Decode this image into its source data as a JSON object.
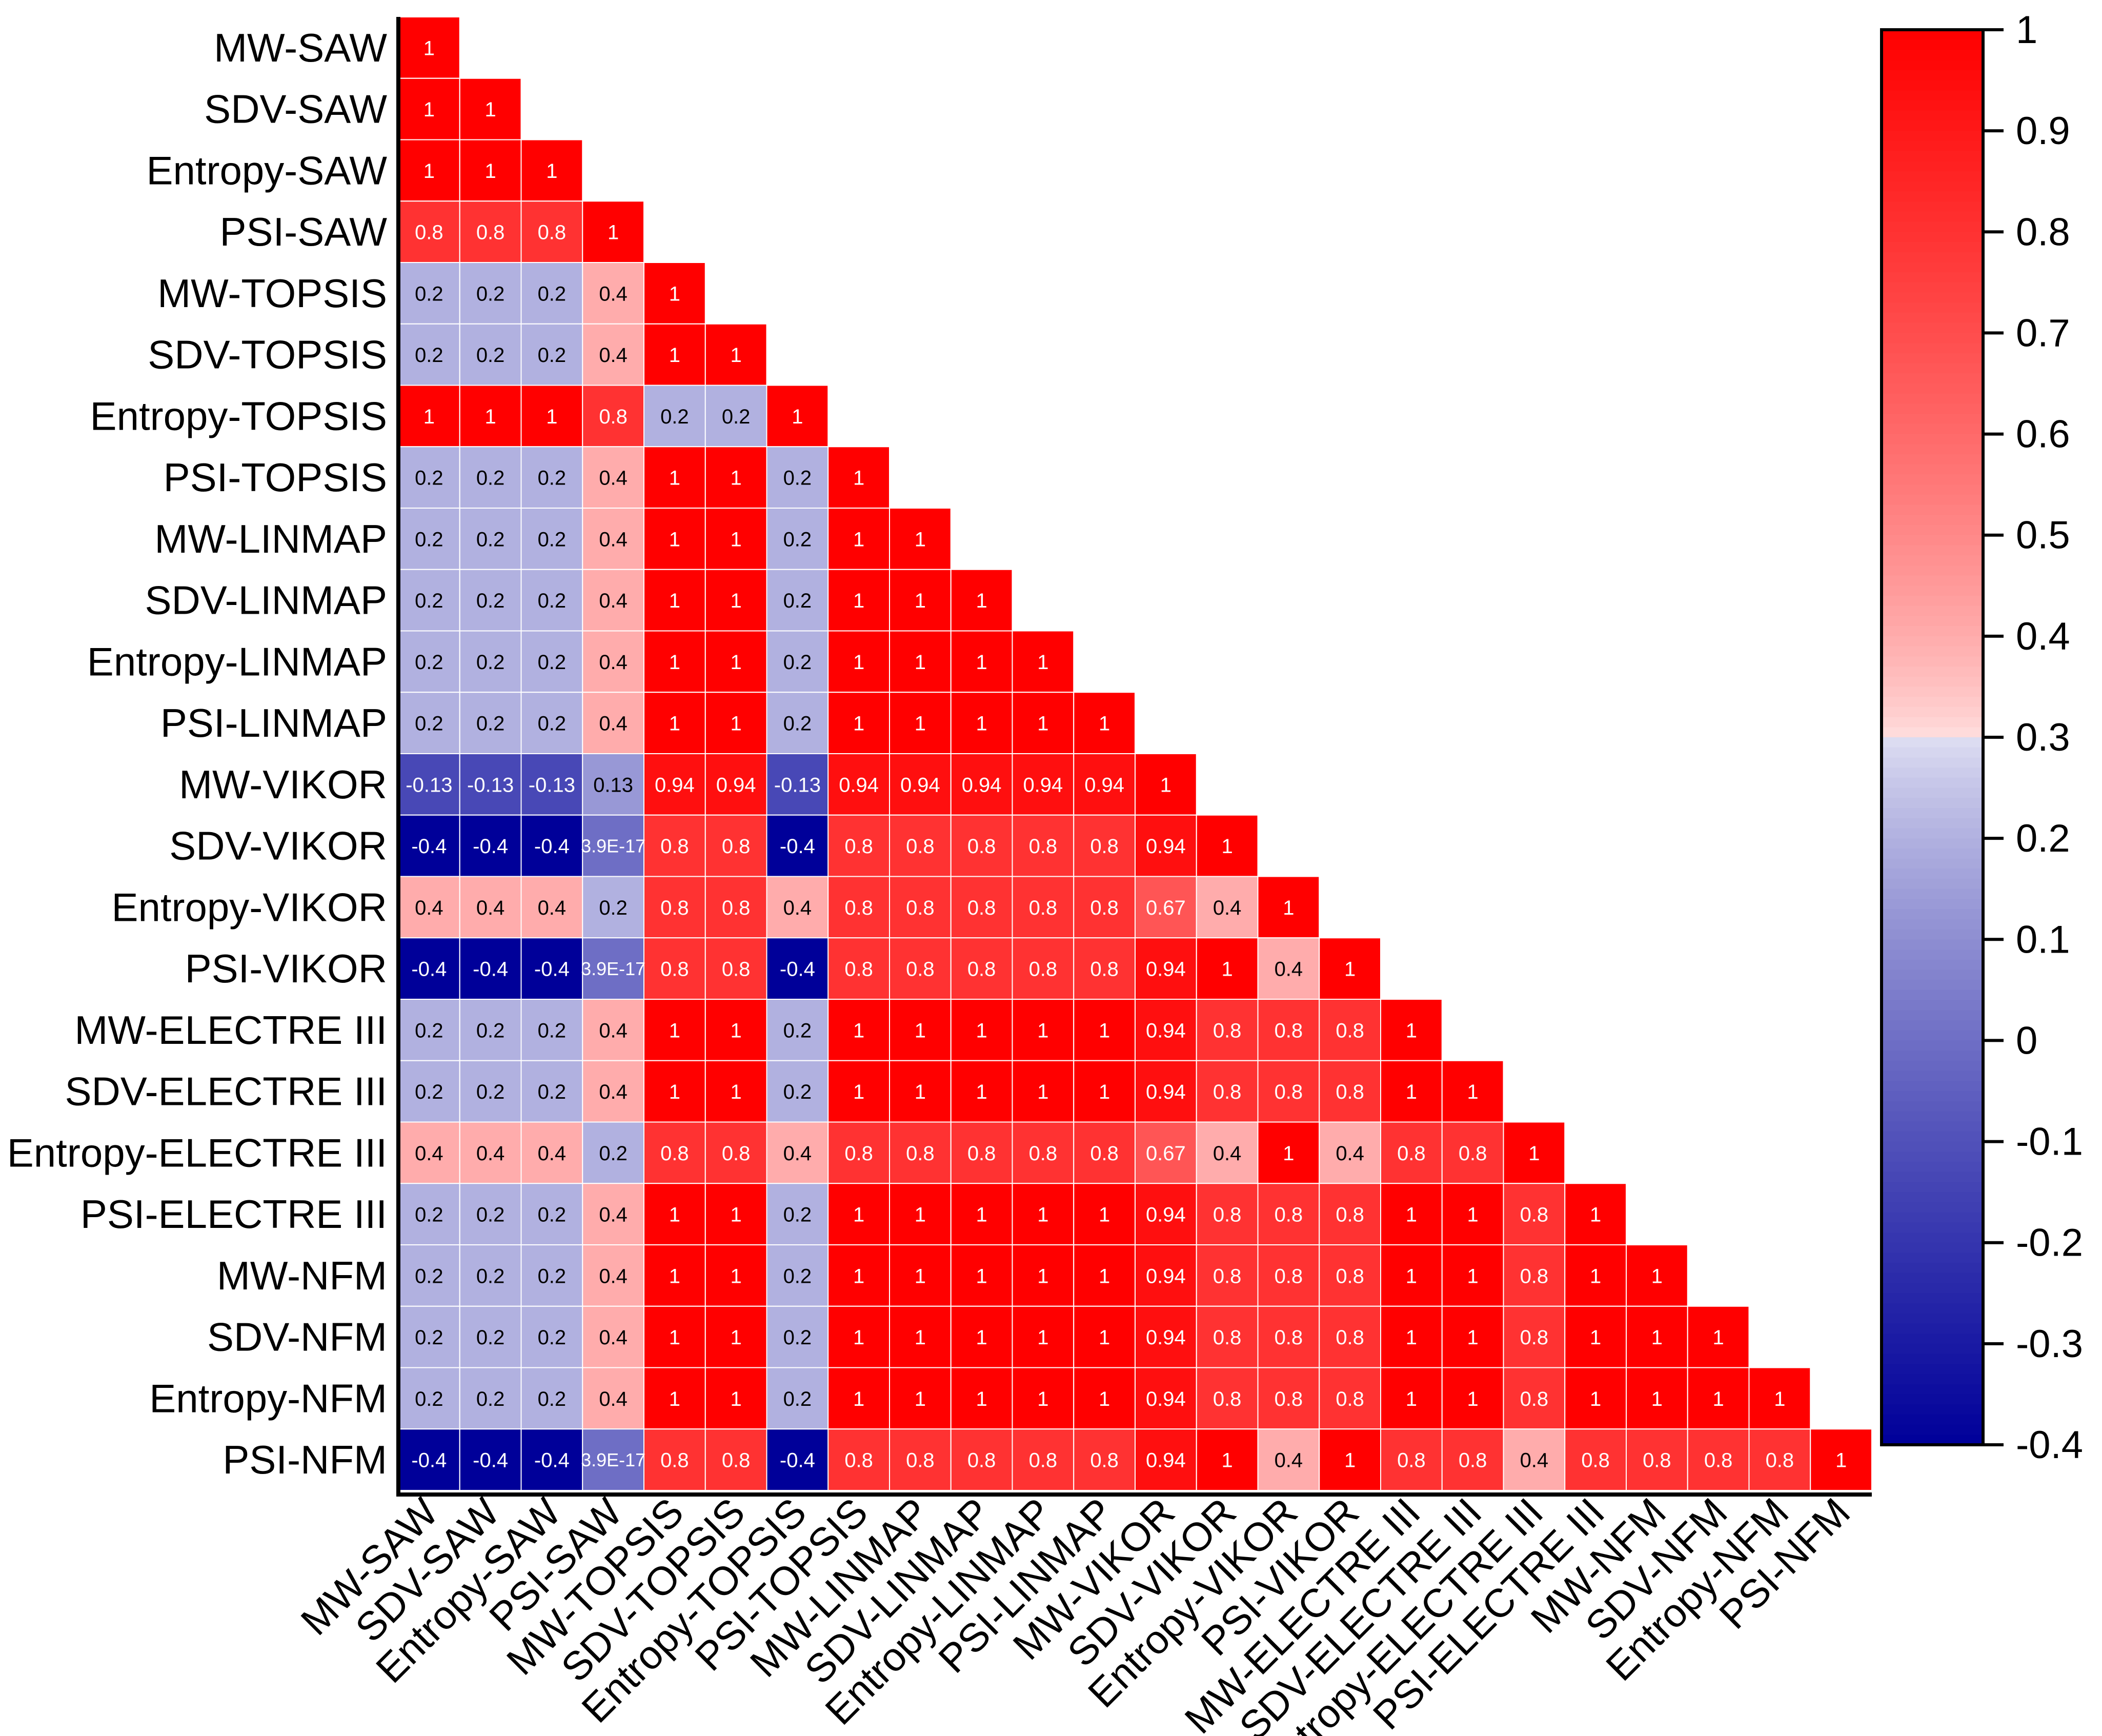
{
  "chart_data": {
    "type": "heatmap",
    "subtype": "lower-triangular correlation matrix",
    "title": "",
    "labels": [
      "MW-SAW",
      "SDV-SAW",
      "Entropy-SAW",
      "PSI-SAW",
      "MW-TOPSIS",
      "SDV-TOPSIS",
      "Entropy-TOPSIS",
      "PSI-TOPSIS",
      "MW-LINMAP",
      "SDV-LINMAP",
      "Entropy-LINMAP",
      "PSI-LINMAP",
      "MW-VIKOR",
      "SDV-VIKOR",
      "Entropy-VIKOR",
      "PSI-VIKOR",
      "MW-ELECTRE III",
      "SDV-ELECTRE III",
      "Entropy-ELECTRE III",
      "PSI-ELECTRE III",
      "MW-NFM",
      "SDV-NFM",
      "Entropy-NFM",
      "PSI-NFM"
    ],
    "rows": [
      [
        "1"
      ],
      [
        "1",
        "1"
      ],
      [
        "1",
        "1",
        "1"
      ],
      [
        "0.8",
        "0.8",
        "0.8",
        "1"
      ],
      [
        "0.2",
        "0.2",
        "0.2",
        "0.4",
        "1"
      ],
      [
        "0.2",
        "0.2",
        "0.2",
        "0.4",
        "1",
        "1"
      ],
      [
        "1",
        "1",
        "1",
        "0.8",
        "0.2",
        "0.2",
        "1"
      ],
      [
        "0.2",
        "0.2",
        "0.2",
        "0.4",
        "1",
        "1",
        "0.2",
        "1"
      ],
      [
        "0.2",
        "0.2",
        "0.2",
        "0.4",
        "1",
        "1",
        "0.2",
        "1",
        "1"
      ],
      [
        "0.2",
        "0.2",
        "0.2",
        "0.4",
        "1",
        "1",
        "0.2",
        "1",
        "1",
        "1"
      ],
      [
        "0.2",
        "0.2",
        "0.2",
        "0.4",
        "1",
        "1",
        "0.2",
        "1",
        "1",
        "1",
        "1"
      ],
      [
        "0.2",
        "0.2",
        "0.2",
        "0.4",
        "1",
        "1",
        "0.2",
        "1",
        "1",
        "1",
        "1",
        "1"
      ],
      [
        "-0.13",
        "-0.13",
        "-0.13",
        "0.13",
        "0.94",
        "0.94",
        "-0.13",
        "0.94",
        "0.94",
        "0.94",
        "0.94",
        "0.94",
        "1"
      ],
      [
        "-0.4",
        "-0.4",
        "-0.4",
        "3.9E-17",
        "0.8",
        "0.8",
        "-0.4",
        "0.8",
        "0.8",
        "0.8",
        "0.8",
        "0.8",
        "0.94",
        "1"
      ],
      [
        "0.4",
        "0.4",
        "0.4",
        "0.2",
        "0.8",
        "0.8",
        "0.4",
        "0.8",
        "0.8",
        "0.8",
        "0.8",
        "0.8",
        "0.67",
        "0.4",
        "1"
      ],
      [
        "-0.4",
        "-0.4",
        "-0.4",
        "3.9E-17",
        "0.8",
        "0.8",
        "-0.4",
        "0.8",
        "0.8",
        "0.8",
        "0.8",
        "0.8",
        "0.94",
        "1",
        "0.4",
        "1"
      ],
      [
        "0.2",
        "0.2",
        "0.2",
        "0.4",
        "1",
        "1",
        "0.2",
        "1",
        "1",
        "1",
        "1",
        "1",
        "0.94",
        "0.8",
        "0.8",
        "0.8",
        "1"
      ],
      [
        "0.2",
        "0.2",
        "0.2",
        "0.4",
        "1",
        "1",
        "0.2",
        "1",
        "1",
        "1",
        "1",
        "1",
        "0.94",
        "0.8",
        "0.8",
        "0.8",
        "1",
        "1"
      ],
      [
        "0.4",
        "0.4",
        "0.4",
        "0.2",
        "0.8",
        "0.8",
        "0.4",
        "0.8",
        "0.8",
        "0.8",
        "0.8",
        "0.8",
        "0.67",
        "0.4",
        "1",
        "0.4",
        "0.8",
        "0.8",
        "1"
      ],
      [
        "0.2",
        "0.2",
        "0.2",
        "0.4",
        "1",
        "1",
        "0.2",
        "1",
        "1",
        "1",
        "1",
        "1",
        "0.94",
        "0.8",
        "0.8",
        "0.8",
        "1",
        "1",
        "0.8",
        "1"
      ],
      [
        "0.2",
        "0.2",
        "0.2",
        "0.4",
        "1",
        "1",
        "0.2",
        "1",
        "1",
        "1",
        "1",
        "1",
        "0.94",
        "0.8",
        "0.8",
        "0.8",
        "1",
        "1",
        "0.8",
        "1",
        "1"
      ],
      [
        "0.2",
        "0.2",
        "0.2",
        "0.4",
        "1",
        "1",
        "0.2",
        "1",
        "1",
        "1",
        "1",
        "1",
        "0.94",
        "0.8",
        "0.8",
        "0.8",
        "1",
        "1",
        "0.8",
        "1",
        "1",
        "1"
      ],
      [
        "0.2",
        "0.2",
        "0.2",
        "0.4",
        "1",
        "1",
        "0.2",
        "1",
        "1",
        "1",
        "1",
        "1",
        "0.94",
        "0.8",
        "0.8",
        "0.8",
        "1",
        "1",
        "0.8",
        "1",
        "1",
        "1",
        "1"
      ],
      [
        "-0.4",
        "-0.4",
        "-0.4",
        "3.9E-17",
        "0.8",
        "0.8",
        "-0.4",
        "0.8",
        "0.8",
        "0.8",
        "0.8",
        "0.8",
        "0.94",
        "1",
        "0.4",
        "1",
        "0.8",
        "0.8",
        "0.4",
        "0.8",
        "0.8",
        "0.8",
        "0.8",
        "1"
      ]
    ],
    "colorbar": {
      "min": -0.4,
      "max": 1,
      "ticks": [
        "1",
        "0.9",
        "0.8",
        "0.7",
        "0.6",
        "0.5",
        "0.4",
        "0.3",
        "0.2",
        "0.1",
        "0",
        "-0.1",
        "-0.2",
        "-0.3",
        "-0.4"
      ],
      "colors": {
        "low": "#000099",
        "mid": "#ffffff",
        "high": "#ff0000"
      },
      "midpoint": 0.3
    }
  }
}
